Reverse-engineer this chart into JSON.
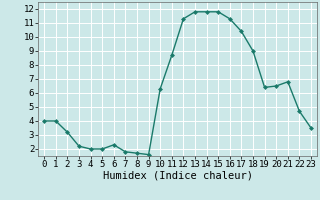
{
  "x": [
    0,
    1,
    2,
    3,
    4,
    5,
    6,
    7,
    8,
    9,
    10,
    11,
    12,
    13,
    14,
    15,
    16,
    17,
    18,
    19,
    20,
    21,
    22,
    23
  ],
  "y": [
    4,
    4,
    3.2,
    2.2,
    2,
    2,
    2.3,
    1.8,
    1.7,
    1.6,
    6.3,
    8.7,
    11.3,
    11.8,
    11.8,
    11.8,
    11.3,
    10.4,
    9.0,
    6.4,
    6.5,
    6.8,
    4.7,
    3.5
  ],
  "line_color": "#1a7a6a",
  "marker": "D",
  "marker_size": 2.0,
  "bg_color": "#cce8e8",
  "grid_color": "#ffffff",
  "xlabel": "Humidex (Indice chaleur)",
  "xlim": [
    -0.5,
    23.5
  ],
  "ylim": [
    1.5,
    12.5
  ],
  "yticks": [
    2,
    3,
    4,
    5,
    6,
    7,
    8,
    9,
    10,
    11,
    12
  ],
  "xticks": [
    0,
    1,
    2,
    3,
    4,
    5,
    6,
    7,
    8,
    9,
    10,
    11,
    12,
    13,
    14,
    15,
    16,
    17,
    18,
    19,
    20,
    21,
    22,
    23
  ],
  "tick_fontsize": 6.5,
  "xlabel_fontsize": 7.5,
  "linewidth": 1.0
}
